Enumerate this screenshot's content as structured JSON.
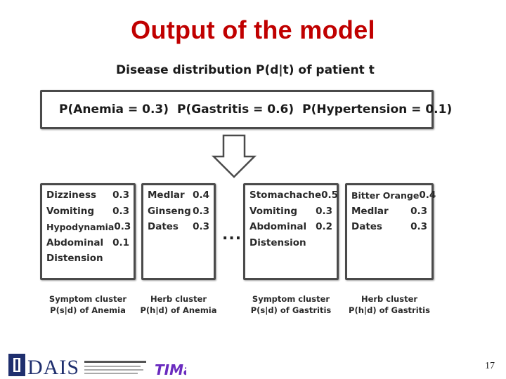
{
  "title": "Output of the model",
  "subtitle": "Disease distribution P(d|t) of patient t",
  "distribution": [
    "P(Anemia = 0.3)",
    "P(Gastritis = 0.6)",
    "P(Hypertension = 0.1)"
  ],
  "ellipsis": "...",
  "clusters": [
    {
      "items": [
        {
          "name": "Dizziness",
          "value": "0.3"
        },
        {
          "name": "Vomiting",
          "value": "0.3"
        },
        {
          "name": "Hypodynamia",
          "value": "0.3"
        },
        {
          "name": "Abdominal",
          "value": "0.1"
        },
        {
          "name": "Distension",
          "value": ""
        }
      ],
      "caption": [
        "Symptom cluster",
        "P(s|d) of Anemia"
      ]
    },
    {
      "items": [
        {
          "name": "Medlar",
          "value": "0.4"
        },
        {
          "name": "Ginseng",
          "value": "0.3"
        },
        {
          "name": "Dates",
          "value": "0.3"
        }
      ],
      "caption": [
        "Herb cluster",
        "P(h|d) of Anemia"
      ]
    },
    {
      "items": [
        {
          "name": "Stomachache",
          "value": "0.5"
        },
        {
          "name": "Vomiting",
          "value": "0.3"
        },
        {
          "name": "Abdominal",
          "value": "0.2"
        },
        {
          "name": "Distension",
          "value": ""
        }
      ],
      "caption": [
        "Symptom cluster",
        "P(s|d) of Gastritis"
      ]
    },
    {
      "items": [
        {
          "name": "Bitter Orange",
          "value": "0.4"
        },
        {
          "name": "Medlar",
          "value": "0.3"
        },
        {
          "name": "Dates",
          "value": "0.3"
        }
      ],
      "caption": [
        "Herb cluster",
        "P(h|d) of Gastritis"
      ]
    }
  ],
  "footer": {
    "logo_text": "DAIS",
    "logo_caption": "The Database and Information Systems Laboratory",
    "logo2_text": "TIMan",
    "page_number": "17"
  }
}
